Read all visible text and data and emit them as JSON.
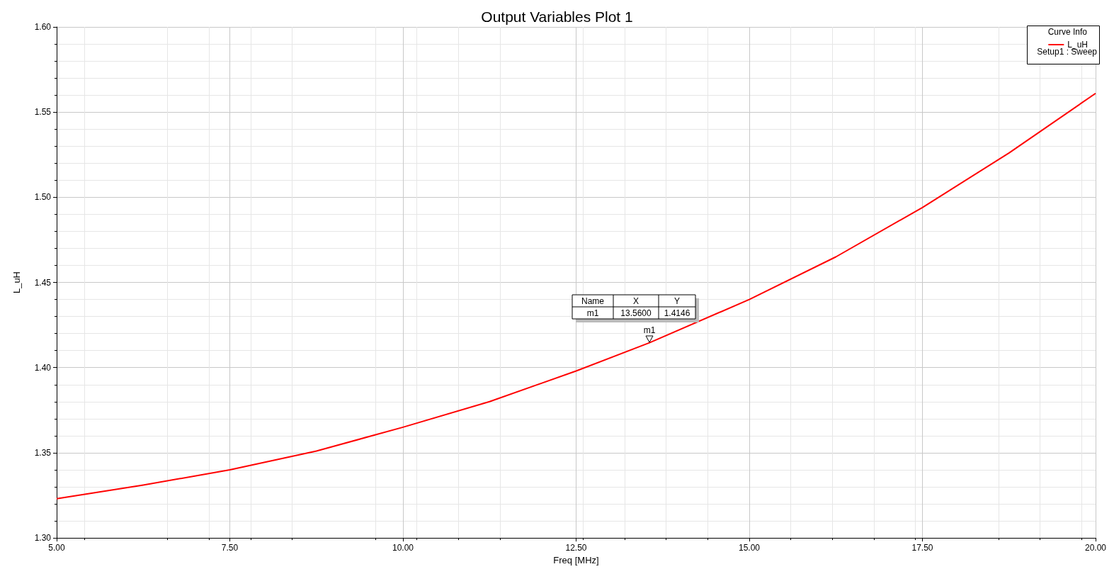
{
  "chart_data": {
    "type": "line",
    "title": "Output Variables Plot 1",
    "xlabel": "Freq [MHz]",
    "ylabel": "L_uH",
    "legend_title": "Curve Info",
    "x": [
      5,
      6.25,
      7.5,
      8.75,
      10,
      11.25,
      12.5,
      13.56,
      15,
      16.25,
      17.5,
      18.75,
      20
    ],
    "series": [
      {
        "name": "L_uH",
        "color": "#ff0000",
        "values": [
          1.323,
          1.331,
          1.34,
          1.351,
          1.365,
          1.38,
          1.398,
          1.4146,
          1.44,
          1.465,
          1.494,
          1.526,
          1.561
        ]
      }
    ],
    "xlim": [
      5,
      20
    ],
    "xticks": [
      {
        "value": 5,
        "label": "5.00"
      },
      {
        "value": 7.5,
        "label": "7.50"
      },
      {
        "value": 10,
        "label": "10.00"
      },
      {
        "value": 12.5,
        "label": "12.50"
      },
      {
        "value": 15,
        "label": "15.00"
      },
      {
        "value": 17.5,
        "label": "17.50"
      },
      {
        "value": 20,
        "label": "20.00"
      }
    ],
    "ylim": [
      1.3,
      1.6
    ],
    "yticks": [
      {
        "value": 1.3,
        "label": "1.30"
      },
      {
        "value": 1.35,
        "label": "1.35"
      },
      {
        "value": 1.4,
        "label": "1.40"
      },
      {
        "value": 1.45,
        "label": "1.45"
      },
      {
        "value": 1.5,
        "label": "1.50"
      },
      {
        "value": 1.55,
        "label": "1.55"
      },
      {
        "value": 1.6,
        "label": "1.60"
      }
    ],
    "grid": true,
    "legend": "top right",
    "marker": "none",
    "line_style": "solid",
    "annotations": [
      {
        "text": "m1",
        "x": 13.56,
        "y": 1.4146
      },
      "Name",
      "X",
      "Y",
      "m1",
      "13.5600",
      "1.4146",
      "Setup1 : Sweep"
    ]
  }
}
